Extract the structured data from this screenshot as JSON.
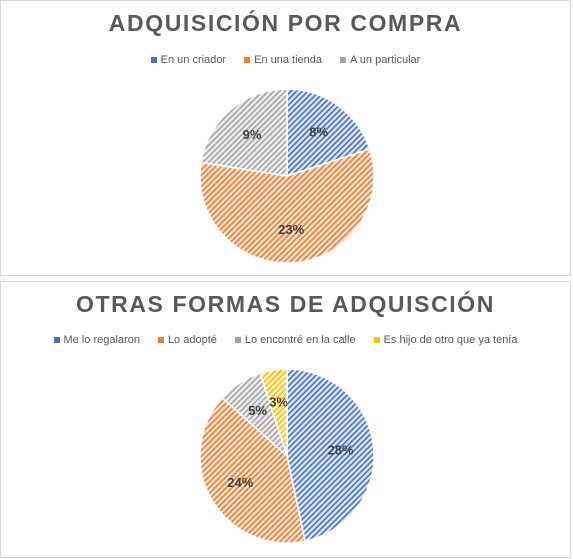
{
  "chart_data": [
    {
      "type": "pie",
      "title": "ADQUISICIÓN POR COMPRA",
      "legend_position": "top",
      "slices": [
        {
          "label": "En un criador",
          "value": 8,
          "display": "8%",
          "color": "#4472c4",
          "hatch_bg": "#dbe3f3"
        },
        {
          "label": "En una tienda",
          "value": 23,
          "display": "23%",
          "color": "#ed7d31",
          "hatch_bg": "#fbe2d2"
        },
        {
          "label": "A un particular",
          "value": 9,
          "display": "9%",
          "color": "#a5a5a5",
          "hatch_bg": "#ededed"
        }
      ]
    },
    {
      "type": "pie",
      "title": "OTRAS FORMAS DE ADQUISCIÓN",
      "legend_position": "top",
      "slices": [
        {
          "label": "Me lo regalaron",
          "value": 28,
          "display": "28%",
          "color": "#4472c4",
          "hatch_bg": "#dbe3f3"
        },
        {
          "label": "Lo adopté",
          "value": 24,
          "display": "24%",
          "color": "#ed7d31",
          "hatch_bg": "#fbe2d2"
        },
        {
          "label": "Lo encontré en la calle",
          "value": 5,
          "display": "5%",
          "color": "#a5a5a5",
          "hatch_bg": "#ededed"
        },
        {
          "label": "Es hijo de otro que ya tenía",
          "value": 3,
          "display": "3%",
          "color": "#ffc000",
          "hatch_bg": "#fff2cc"
        }
      ]
    }
  ]
}
